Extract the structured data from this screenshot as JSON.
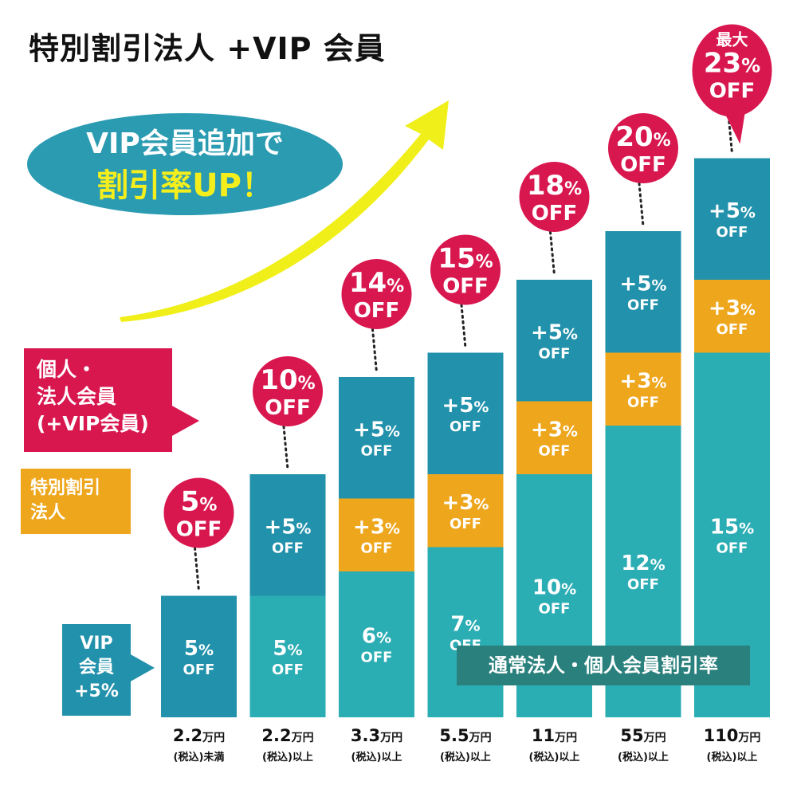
{
  "title": "特別割引法人 +VIP 会員",
  "callout": {
    "line1": "VIP会員追加で",
    "line2": "割引率UP！"
  },
  "legend": {
    "corp": [
      "個人・",
      "法人会員",
      "(+VIP会員)"
    ],
    "special": [
      "特別割引",
      "法人"
    ],
    "vip": [
      "VIP",
      "会員",
      "+5%"
    ]
  },
  "normal_label": "通常法人・個人会員割引率",
  "colors": {
    "normal": "#2badb4",
    "special": "#eea61c",
    "vip": "#2291ab",
    "bubble": "#d8174f",
    "arrow": "#f0ef1a",
    "callout": "#2b9bb2",
    "normal_label_bg": "#2a807c"
  },
  "chart_data": {
    "type": "bar",
    "stacked": true,
    "unit": "%",
    "categories": [
      {
        "amount": "2.2",
        "unit": "万円",
        "note": "(税込)未満"
      },
      {
        "amount": "2.2",
        "unit": "万円",
        "note": "(税込)以上"
      },
      {
        "amount": "3.3",
        "unit": "万円",
        "note": "(税込)以上"
      },
      {
        "amount": "5.5",
        "unit": "万円",
        "note": "(税込)以上"
      },
      {
        "amount": "11",
        "unit": "万円",
        "note": "(税込)以上"
      },
      {
        "amount": "55",
        "unit": "万円",
        "note": "(税込)以上"
      },
      {
        "amount": "110",
        "unit": "万円",
        "note": "(税込)以上"
      }
    ],
    "series": [
      {
        "key": "normal",
        "values": [
          0,
          5,
          6,
          7,
          10,
          12,
          15
        ],
        "labels": [
          "",
          "5%",
          "6%",
          "7%",
          "10%",
          "12%",
          "15%"
        ]
      },
      {
        "key": "special",
        "values": [
          0,
          0,
          3,
          3,
          3,
          3,
          3
        ],
        "labels": [
          "",
          "",
          "+3%",
          "+3%",
          "+3%",
          "+3%",
          "+3%"
        ]
      },
      {
        "key": "vip",
        "values": [
          5,
          5,
          5,
          5,
          5,
          5,
          5
        ],
        "labels": [
          "5%",
          "+5%",
          "+5%",
          "+5%",
          "+5%",
          "+5%",
          "+5%"
        ]
      }
    ],
    "segment_suffix": "OFF",
    "totals": [
      {
        "pct": "5",
        "suffix": "OFF"
      },
      {
        "pct": "10",
        "suffix": "OFF"
      },
      {
        "pct": "14",
        "suffix": "OFF"
      },
      {
        "pct": "15",
        "suffix": "OFF"
      },
      {
        "pct": "18",
        "suffix": "OFF"
      },
      {
        "pct": "20",
        "suffix": "OFF"
      },
      {
        "pct": "23",
        "suffix": "OFF",
        "prefix": "最大"
      }
    ]
  }
}
